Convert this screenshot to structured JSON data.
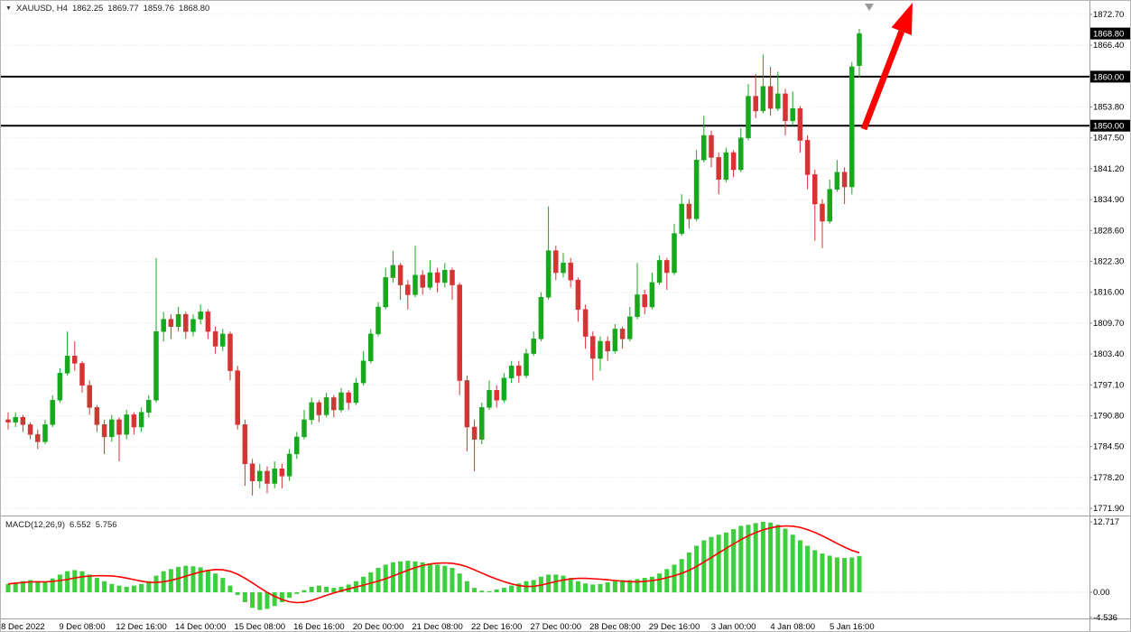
{
  "window": {
    "app": "MetaTrader chart"
  },
  "chart_data": [
    {
      "type": "candlestick",
      "title": "XAUUSD, H4",
      "ohlc": {
        "open": "1862.25",
        "high": "1869.77",
        "low": "1859.76",
        "close": "1868.80"
      },
      "ylim": [
        1770.45,
        1875.45
      ],
      "y_tick_labels": [
        "1872.70",
        "1866.40",
        "1860.10",
        "1853.80",
        "1847.50",
        "1841.20",
        "1834.90",
        "1828.60",
        "1822.30",
        "1816.00",
        "1809.70",
        "1803.40",
        "1797.10",
        "1790.80",
        "1784.50",
        "1778.20",
        "1771.90"
      ],
      "x_ticks": [
        {
          "i": 2,
          "label": "8 Dec 2022"
        },
        {
          "i": 10,
          "label": "9 Dec 08:00"
        },
        {
          "i": 18,
          "label": "12 Dec 16:00"
        },
        {
          "i": 26,
          "label": "14 Dec 00:00"
        },
        {
          "i": 34,
          "label": "15 Dec 08:00"
        },
        {
          "i": 42,
          "label": "16 Dec 16:00"
        },
        {
          "i": 50,
          "label": "20 Dec 00:00"
        },
        {
          "i": 58,
          "label": "21 Dec 08:00"
        },
        {
          "i": 66,
          "label": "22 Dec 16:00"
        },
        {
          "i": 74,
          "label": "27 Dec 00:00"
        },
        {
          "i": 82,
          "label": "28 Dec 08:00"
        },
        {
          "i": 90,
          "label": "29 Dec 16:00"
        },
        {
          "i": 98,
          "label": "3 Jan 00:00"
        },
        {
          "i": 106,
          "label": "4 Jan 08:00"
        },
        {
          "i": 114,
          "label": "5 Jan 16:00"
        }
      ],
      "hlines": [
        {
          "value": 1860.0,
          "label": "1860.00"
        },
        {
          "value": 1850.0,
          "label": "1850.00"
        }
      ],
      "current_price": {
        "value": 1868.8,
        "label": "1868.80"
      },
      "colors": {
        "bull": "#17a81d",
        "bear": "#d53434",
        "hline": "#000000",
        "grid": "#e4e4e4",
        "badge_bg": "#000000",
        "badge_text": "#ffffff"
      },
      "annotations": [
        {
          "type": "arrow",
          "color": "#ff0000",
          "from_xy": [
            956,
            142
          ],
          "to_xy": [
            1010,
            2
          ]
        },
        {
          "type": "chart-shift-marker",
          "color": "#9a9a9a",
          "xy": [
            962,
            3
          ]
        }
      ],
      "candles": [
        [
          1790.0,
          1791.5,
          1788.0,
          1789.5
        ],
        [
          1789.5,
          1791.5,
          1788.5,
          1790.5
        ],
        [
          1790.5,
          1791.0,
          1787.5,
          1789.0
        ],
        [
          1789.0,
          1789.5,
          1786.0,
          1787.0
        ],
        [
          1787.0,
          1788.0,
          1784.0,
          1785.5
        ],
        [
          1785.5,
          1790.0,
          1785.0,
          1789.0
        ],
        [
          1789.0,
          1795.0,
          1788.5,
          1794.0
        ],
        [
          1794.0,
          1800.5,
          1793.5,
          1799.5
        ],
        [
          1799.5,
          1808.0,
          1799.0,
          1803.0
        ],
        [
          1803.0,
          1806.0,
          1800.0,
          1801.5
        ],
        [
          1801.5,
          1802.0,
          1795.5,
          1797.0
        ],
        [
          1797.0,
          1798.0,
          1791.0,
          1792.5
        ],
        [
          1792.5,
          1793.0,
          1787.5,
          1789.0
        ],
        [
          1789.0,
          1790.0,
          1783.0,
          1786.5
        ],
        [
          1786.5,
          1791.0,
          1785.5,
          1790.0
        ],
        [
          1790.0,
          1790.5,
          1781.5,
          1787.0
        ],
        [
          1787.0,
          1792.0,
          1786.0,
          1791.0
        ],
        [
          1791.0,
          1791.5,
          1787.0,
          1788.5
        ],
        [
          1788.5,
          1792.5,
          1787.5,
          1791.5
        ],
        [
          1791.5,
          1795.0,
          1790.5,
          1794.0
        ],
        [
          1794.0,
          1823.0,
          1793.5,
          1808.0
        ],
        [
          1808.0,
          1812.0,
          1806.0,
          1810.5
        ],
        [
          1810.5,
          1811.5,
          1806.5,
          1809.0
        ],
        [
          1809.0,
          1813.0,
          1808.0,
          1811.5
        ],
        [
          1811.5,
          1812.0,
          1806.5,
          1808.0
        ],
        [
          1808.0,
          1811.5,
          1807.0,
          1810.5
        ],
        [
          1810.5,
          1813.5,
          1809.5,
          1812.0
        ],
        [
          1812.0,
          1812.5,
          1806.5,
          1808.0
        ],
        [
          1808.0,
          1809.0,
          1803.5,
          1805.0
        ],
        [
          1805.0,
          1808.5,
          1804.0,
          1807.5
        ],
        [
          1807.5,
          1808.0,
          1798.0,
          1800.0
        ],
        [
          1800.0,
          1801.0,
          1788.0,
          1789.0
        ],
        [
          1789.0,
          1790.0,
          1776.5,
          1781.0
        ],
        [
          1781.0,
          1782.0,
          1774.5,
          1777.5
        ],
        [
          1777.5,
          1781.0,
          1776.0,
          1779.5
        ],
        [
          1779.5,
          1780.5,
          1775.0,
          1777.0
        ],
        [
          1777.0,
          1781.5,
          1776.0,
          1780.0
        ],
        [
          1780.0,
          1781.0,
          1776.0,
          1778.5
        ],
        [
          1778.5,
          1784.0,
          1777.5,
          1783.0
        ],
        [
          1783.0,
          1787.5,
          1782.0,
          1786.5
        ],
        [
          1786.5,
          1792.0,
          1786.0,
          1790.0
        ],
        [
          1790.0,
          1794.5,
          1789.0,
          1793.5
        ],
        [
          1793.5,
          1794.0,
          1789.5,
          1791.0
        ],
        [
          1791.0,
          1795.5,
          1790.5,
          1794.5
        ],
        [
          1794.5,
          1795.0,
          1790.5,
          1792.0
        ],
        [
          1792.0,
          1796.5,
          1791.5,
          1795.5
        ],
        [
          1795.5,
          1796.0,
          1792.0,
          1793.5
        ],
        [
          1793.5,
          1798.5,
          1793.0,
          1797.5
        ],
        [
          1797.5,
          1804.0,
          1797.0,
          1802.0
        ],
        [
          1802.0,
          1808.5,
          1801.5,
          1807.5
        ],
        [
          1807.5,
          1814.0,
          1807.0,
          1813.0
        ],
        [
          1813.0,
          1821.0,
          1812.5,
          1819.0
        ],
        [
          1819.0,
          1824.5,
          1818.0,
          1821.5
        ],
        [
          1821.5,
          1822.0,
          1814.5,
          1817.5
        ],
        [
          1817.5,
          1818.5,
          1812.5,
          1815.5
        ],
        [
          1815.5,
          1825.5,
          1815.0,
          1819.5
        ],
        [
          1819.5,
          1820.5,
          1815.5,
          1817.0
        ],
        [
          1817.0,
          1822.5,
          1816.5,
          1820.0
        ],
        [
          1820.0,
          1821.0,
          1816.0,
          1818.0
        ],
        [
          1818.0,
          1822.0,
          1817.0,
          1820.5
        ],
        [
          1820.5,
          1821.0,
          1814.5,
          1817.5
        ],
        [
          1817.5,
          1818.0,
          1795.0,
          1798.0
        ],
        [
          1798.0,
          1799.0,
          1783.5,
          1788.5
        ],
        [
          1788.5,
          1790.0,
          1779.5,
          1786.0
        ],
        [
          1786.0,
          1793.5,
          1785.0,
          1792.5
        ],
        [
          1792.5,
          1798.0,
          1792.0,
          1796.0
        ],
        [
          1796.0,
          1797.0,
          1792.5,
          1794.0
        ],
        [
          1794.0,
          1799.5,
          1793.5,
          1798.5
        ],
        [
          1798.5,
          1802.0,
          1797.5,
          1801.0
        ],
        [
          1801.0,
          1802.0,
          1797.5,
          1799.0
        ],
        [
          1799.0,
          1804.5,
          1798.5,
          1803.5
        ],
        [
          1803.5,
          1808.0,
          1803.0,
          1806.5
        ],
        [
          1806.5,
          1816.0,
          1806.0,
          1815.0
        ],
        [
          1815.0,
          1833.5,
          1814.5,
          1824.5
        ],
        [
          1824.5,
          1825.5,
          1818.5,
          1820.0
        ],
        [
          1820.0,
          1824.0,
          1819.0,
          1822.0
        ],
        [
          1822.0,
          1823.0,
          1817.0,
          1818.5
        ],
        [
          1818.5,
          1819.0,
          1810.0,
          1812.5
        ],
        [
          1812.5,
          1813.5,
          1804.5,
          1807.0
        ],
        [
          1807.0,
          1808.0,
          1798.0,
          1802.5
        ],
        [
          1802.5,
          1807.0,
          1800.0,
          1806.0
        ],
        [
          1806.0,
          1807.0,
          1802.0,
          1804.0
        ],
        [
          1804.0,
          1809.5,
          1803.5,
          1808.5
        ],
        [
          1808.5,
          1809.0,
          1804.5,
          1806.5
        ],
        [
          1806.5,
          1813.0,
          1806.0,
          1811.0
        ],
        [
          1811.0,
          1822.0,
          1810.5,
          1815.5
        ],
        [
          1815.5,
          1816.5,
          1811.5,
          1813.0
        ],
        [
          1813.0,
          1820.0,
          1812.5,
          1818.0
        ],
        [
          1818.0,
          1823.5,
          1817.5,
          1822.5
        ],
        [
          1822.5,
          1823.0,
          1816.5,
          1820.0
        ],
        [
          1820.0,
          1830.0,
          1819.5,
          1828.0
        ],
        [
          1828.0,
          1836.0,
          1827.5,
          1834.0
        ],
        [
          1834.0,
          1835.0,
          1829.0,
          1831.0
        ],
        [
          1831.0,
          1845.0,
          1830.5,
          1843.0
        ],
        [
          1843.0,
          1852.0,
          1842.5,
          1848.0
        ],
        [
          1848.0,
          1849.0,
          1841.5,
          1843.5
        ],
        [
          1843.5,
          1844.5,
          1836.0,
          1839.0
        ],
        [
          1839.0,
          1845.5,
          1838.5,
          1844.5
        ],
        [
          1844.5,
          1845.0,
          1839.5,
          1841.0
        ],
        [
          1841.0,
          1849.5,
          1840.5,
          1847.5
        ],
        [
          1847.5,
          1858.5,
          1847.0,
          1856.0
        ],
        [
          1856.0,
          1860.5,
          1851.5,
          1853.0
        ],
        [
          1853.0,
          1864.5,
          1852.5,
          1858.0
        ],
        [
          1858.0,
          1862.0,
          1852.0,
          1853.5
        ],
        [
          1853.5,
          1861.0,
          1853.0,
          1856.5
        ],
        [
          1856.5,
          1857.5,
          1848.0,
          1851.0
        ],
        [
          1851.0,
          1857.0,
          1850.0,
          1853.5
        ],
        [
          1853.5,
          1854.0,
          1844.5,
          1847.0
        ],
        [
          1847.0,
          1848.0,
          1837.0,
          1840.0
        ],
        [
          1840.0,
          1841.0,
          1826.5,
          1834.0
        ],
        [
          1834.0,
          1835.0,
          1825.0,
          1830.5
        ],
        [
          1830.5,
          1839.0,
          1830.0,
          1837.0
        ],
        [
          1837.0,
          1843.0,
          1836.5,
          1840.5
        ],
        [
          1840.5,
          1841.5,
          1834.0,
          1837.5
        ],
        [
          1837.5,
          1863.0,
          1836.0,
          1862.0
        ],
        [
          1862.25,
          1869.77,
          1859.76,
          1868.8
        ]
      ]
    },
    {
      "type": "bar",
      "title": "MACD(12,26,9)",
      "value_main": "6.552",
      "value_signal": "5.756",
      "ylim": [
        -4.73,
        13.54
      ],
      "y_tick_labels": [
        "12.717",
        "0.00",
        "-4.536"
      ],
      "signal_period": 9,
      "colors": {
        "histogram": "#3ecf3e",
        "signal": "#ff0000",
        "zero_grid": "#c8c8c8"
      },
      "histogram": [
        1.5,
        1.8,
        2.0,
        2.2,
        2.0,
        1.8,
        2.5,
        3.2,
        3.8,
        4.0,
        3.8,
        3.2,
        2.6,
        2.0,
        1.5,
        1.2,
        1.0,
        1.2,
        1.5,
        2.0,
        3.0,
        3.8,
        4.2,
        4.6,
        4.8,
        4.7,
        4.5,
        4.0,
        3.4,
        2.6,
        1.2,
        -0.5,
        -1.8,
        -2.8,
        -3.2,
        -3.0,
        -2.5,
        -1.8,
        -1.0,
        -0.3,
        0.4,
        1.0,
        1.2,
        1.0,
        0.8,
        1.0,
        1.4,
        2.0,
        2.8,
        3.6,
        4.4,
        5.0,
        5.4,
        5.6,
        5.7,
        5.6,
        5.4,
        5.2,
        5.0,
        4.8,
        4.4,
        3.4,
        2.0,
        0.8,
        0.3,
        0.2,
        0.5,
        0.8,
        1.2,
        1.6,
        2.0,
        2.2,
        2.8,
        3.2,
        3.2,
        3.0,
        2.6,
        2.0,
        1.6,
        1.4,
        1.5,
        1.8,
        2.0,
        2.2,
        2.2,
        2.4,
        2.6,
        2.8,
        3.4,
        4.2,
        5.0,
        6.0,
        7.2,
        8.4,
        9.4,
        10.0,
        10.4,
        10.8,
        11.4,
        12.0,
        12.2,
        12.5,
        12.717,
        12.6,
        12.2,
        11.5,
        10.4,
        9.4,
        8.4,
        7.6,
        7.0,
        6.6,
        6.3,
        6.2,
        6.3,
        6.552
      ]
    }
  ]
}
